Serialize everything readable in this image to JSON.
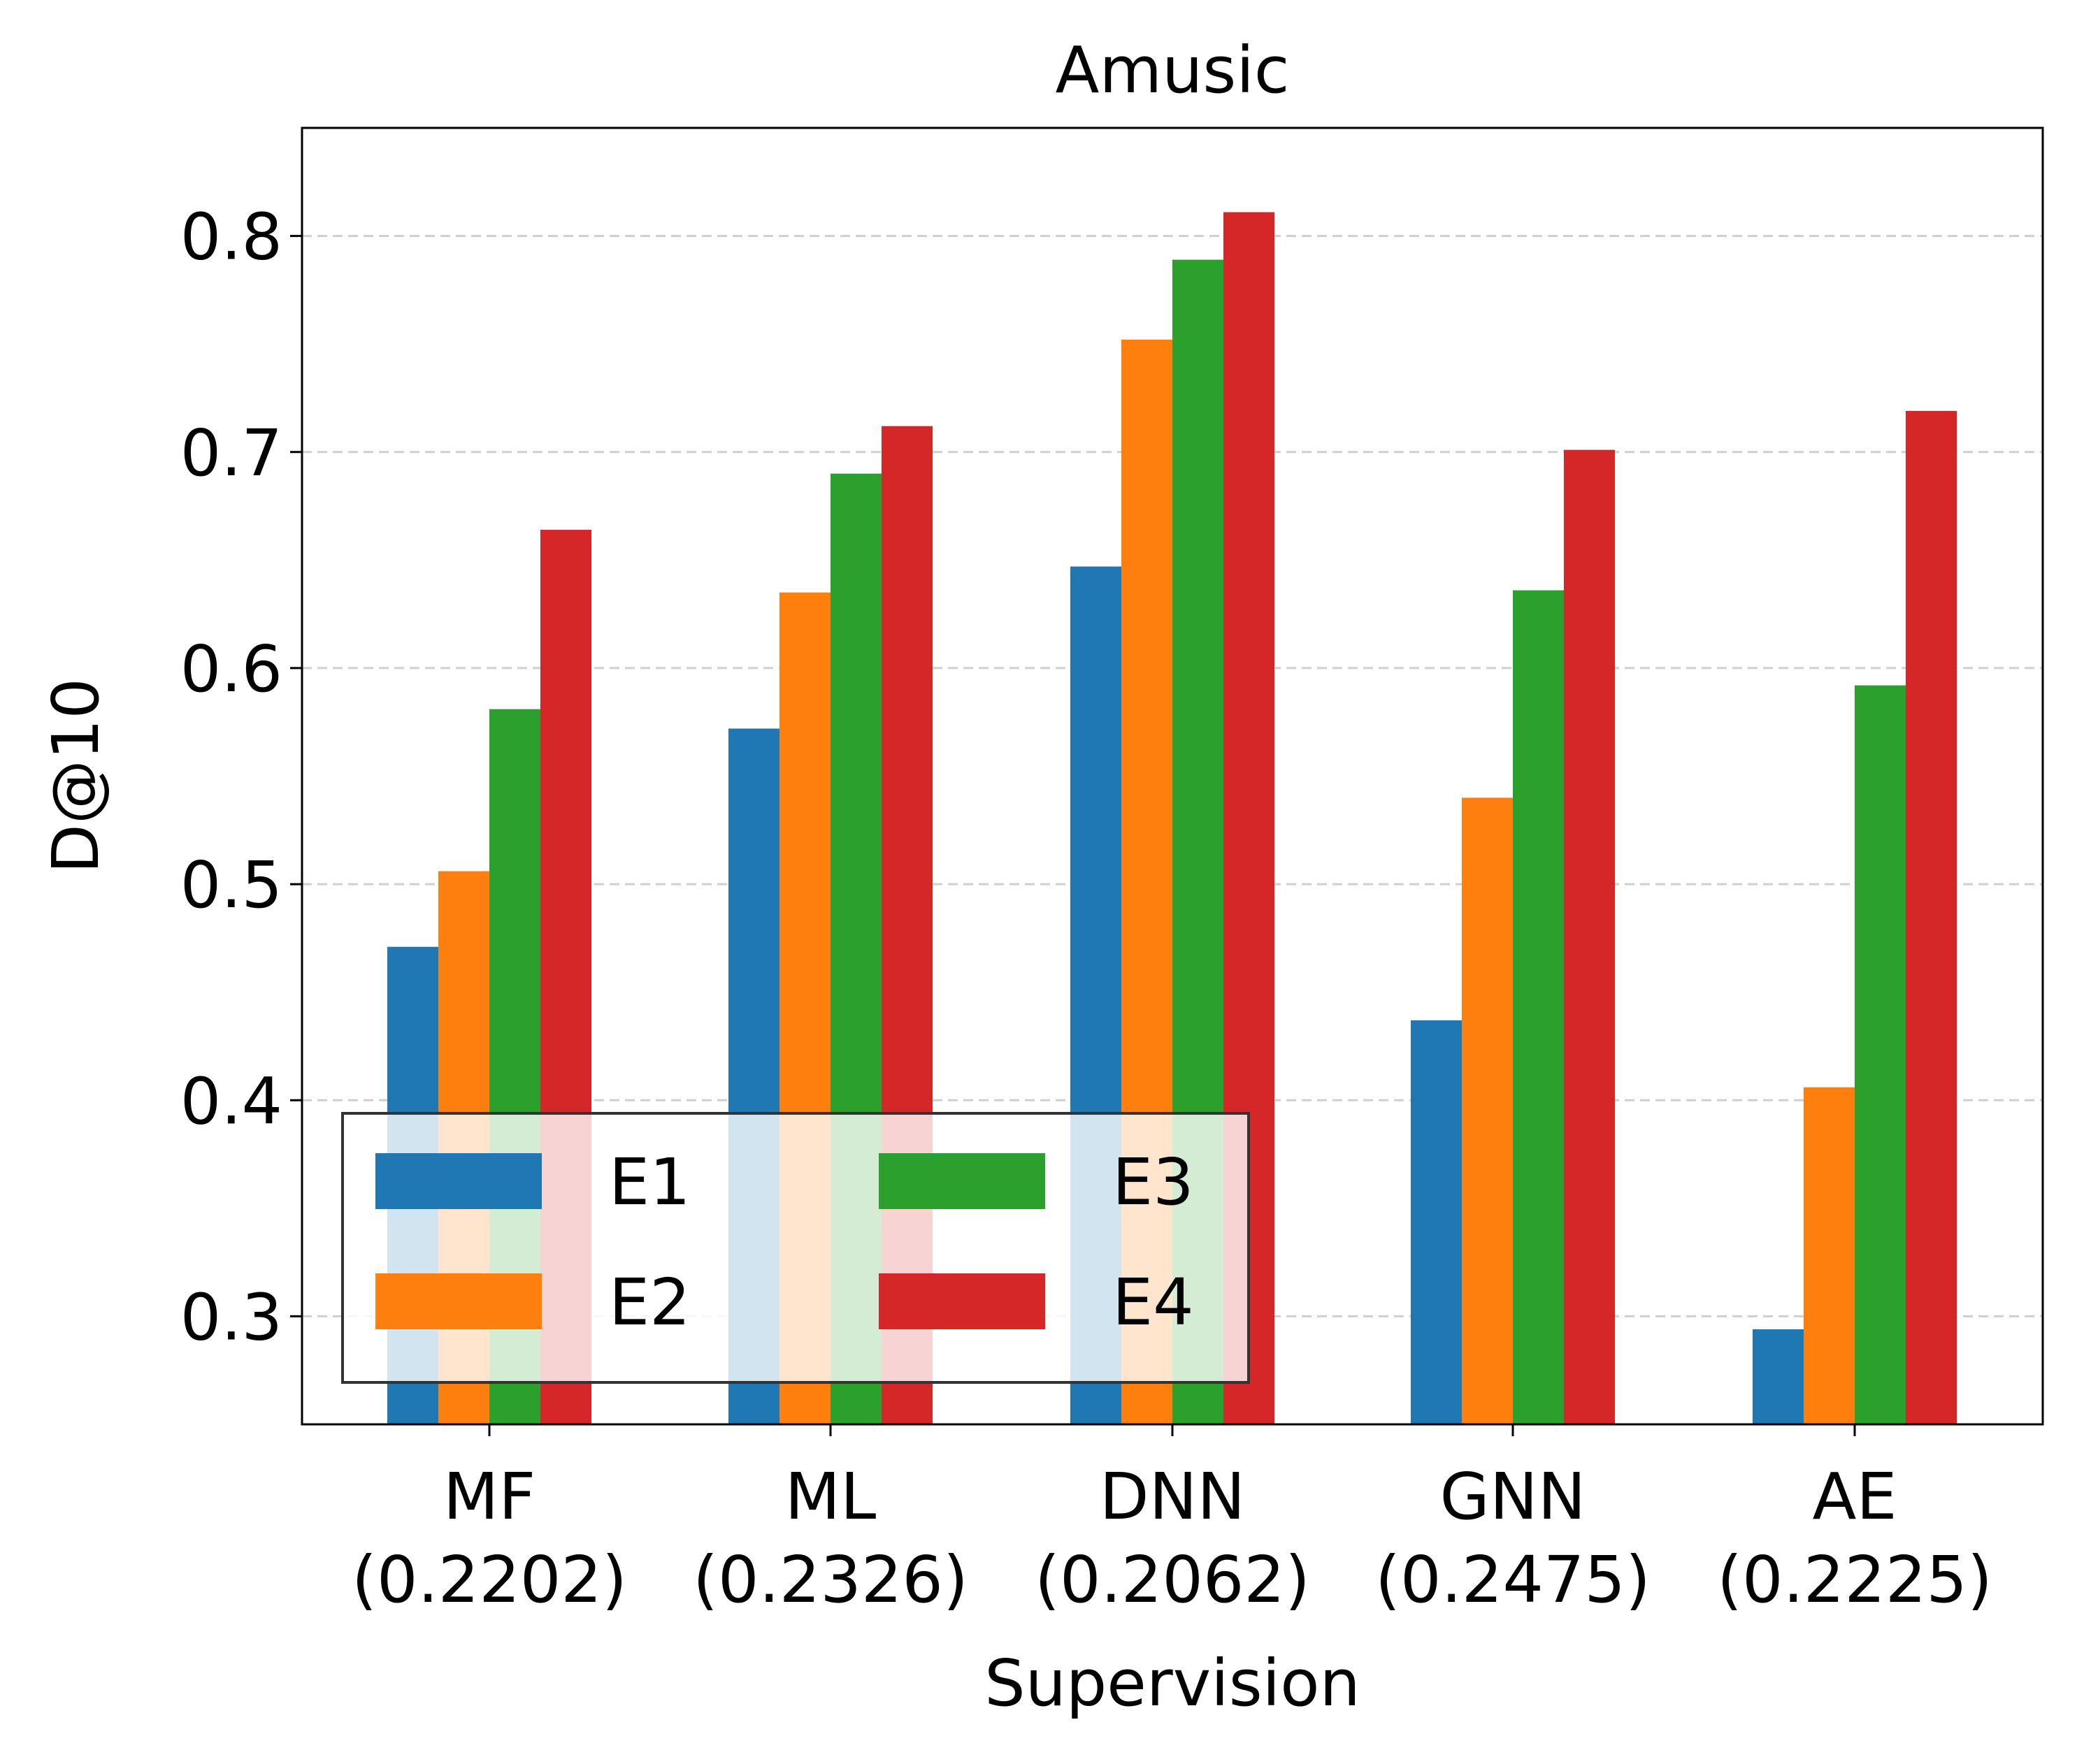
{
  "chart_data": {
    "type": "bar",
    "title": "Amusic",
    "xlabel": "Supervision",
    "ylabel": "D@10",
    "categories": [
      "MF",
      "ML",
      "DNN",
      "GNN",
      "AE"
    ],
    "category_sublabels": [
      "(0.2202)",
      "(0.2326)",
      "(0.2062)",
      "(0.2475)",
      "(0.2225)"
    ],
    "series": [
      {
        "name": "E1",
        "color": "#1f77b4",
        "values": [
          0.471,
          0.572,
          0.647,
          0.437,
          0.294
        ]
      },
      {
        "name": "E2",
        "color": "#ff7f0e",
        "values": [
          0.506,
          0.635,
          0.752,
          0.54,
          0.406
        ]
      },
      {
        "name": "E3",
        "color": "#2ca02c",
        "values": [
          0.581,
          0.69,
          0.789,
          0.636,
          0.592
        ]
      },
      {
        "name": "E4",
        "color": "#d62728",
        "values": [
          0.664,
          0.712,
          0.811,
          0.701,
          0.719
        ]
      }
    ],
    "ylim": [
      0.25,
      0.85
    ],
    "yticks": [
      0.3,
      0.4,
      0.5,
      0.6,
      0.7,
      0.8
    ],
    "ytick_labels": [
      "0.3",
      "0.4",
      "0.5",
      "0.6",
      "0.7",
      "0.8"
    ],
    "grid": "y-dashed",
    "legend": {
      "placement": "lower-left",
      "columns": 2
    }
  }
}
